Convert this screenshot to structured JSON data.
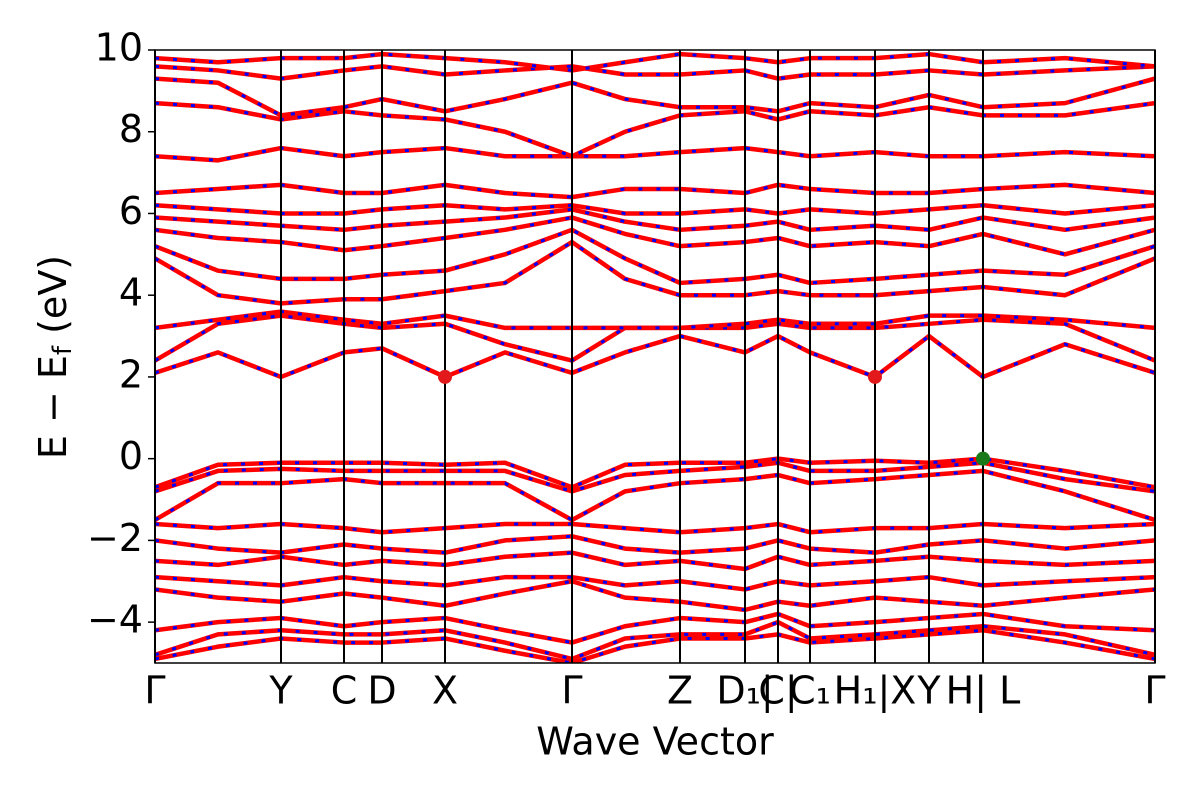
{
  "chart_data": {
    "type": "line",
    "xlabel": "Wave Vector",
    "ylabel": {
      "main": "E − E",
      "sub": "f",
      "unit": " (eV)"
    },
    "xlim": [
      0,
      1
    ],
    "ylim": [
      -5,
      10
    ],
    "yticks": [
      {
        "value": -4,
        "label": "−4"
      },
      {
        "value": -2,
        "label": "−2"
      },
      0,
      2,
      4,
      6,
      8,
      10
    ],
    "xticks": [
      {
        "value": 0,
        "label": "Γ"
      },
      {
        "value": 0.126,
        "label": "Y"
      },
      {
        "value": 0.189,
        "label": "C"
      },
      {
        "value": 0.227,
        "label": "D"
      },
      {
        "value": 0.29,
        "label": "X"
      },
      {
        "value": 0.417,
        "label": "Γ"
      },
      {
        "value": 0.525,
        "label": "Z"
      },
      {
        "value": 0.59,
        "label": "D₁|"
      },
      {
        "value": 0.623,
        "label": "C|"
      },
      {
        "value": 0.655,
        "label": "C₁"
      },
      {
        "value": 0.72,
        "label": "H₁|X"
      },
      {
        "value": 0.774,
        "label": "Y"
      },
      {
        "value": 0.828,
        "label": "H| L"
      },
      {
        "value": 1,
        "label": "Γ"
      }
    ],
    "line_color": "#ff0000",
    "dash_color": "#0000ff",
    "x": [
      0,
      0.063,
      0.126,
      0.189,
      0.227,
      0.29,
      0.35,
      0.417,
      0.47,
      0.525,
      0.59,
      0.623,
      0.655,
      0.72,
      0.774,
      0.828,
      0.91,
      1
    ],
    "series": [
      {
        "values": [
          -0.7,
          -0.15,
          -0.1,
          -0.1,
          -0.1,
          -0.15,
          -0.1,
          -0.7,
          -0.15,
          -0.1,
          -0.1,
          0.0,
          -0.1,
          -0.05,
          -0.1,
          0.0,
          -0.3,
          -0.7
        ]
      },
      {
        "values": [
          -0.8,
          -0.3,
          -0.25,
          -0.3,
          -0.3,
          -0.3,
          -0.3,
          -0.8,
          -0.4,
          -0.3,
          -0.2,
          -0.1,
          -0.3,
          -0.3,
          -0.2,
          -0.1,
          -0.5,
          -0.8
        ]
      },
      {
        "values": [
          -1.5,
          -0.6,
          -0.6,
          -0.5,
          -0.6,
          -0.6,
          -0.6,
          -1.5,
          -0.8,
          -0.6,
          -0.5,
          -0.4,
          -0.6,
          -0.5,
          -0.4,
          -0.3,
          -0.8,
          -1.5
        ]
      },
      {
        "values": [
          -1.6,
          -1.7,
          -1.6,
          -1.7,
          -1.8,
          -1.7,
          -1.6,
          -1.6,
          -1.7,
          -1.8,
          -1.7,
          -1.6,
          -1.8,
          -1.7,
          -1.7,
          -1.6,
          -1.7,
          -1.6
        ]
      },
      {
        "values": [
          -2.0,
          -2.2,
          -2.3,
          -2.1,
          -2.2,
          -2.3,
          -2.0,
          -1.9,
          -2.2,
          -2.3,
          -2.2,
          -2.0,
          -2.2,
          -2.3,
          -2.1,
          -2.0,
          -2.2,
          -2.0
        ]
      },
      {
        "values": [
          -2.5,
          -2.6,
          -2.4,
          -2.6,
          -2.5,
          -2.6,
          -2.4,
          -2.3,
          -2.6,
          -2.5,
          -2.7,
          -2.4,
          -2.6,
          -2.5,
          -2.4,
          -2.5,
          -2.6,
          -2.5
        ]
      },
      {
        "values": [
          -2.9,
          -3.0,
          -3.1,
          -2.9,
          -3.0,
          -3.1,
          -2.9,
          -2.9,
          -3.1,
          -3.0,
          -3.2,
          -3.0,
          -3.1,
          -3.0,
          -2.9,
          -3.1,
          -3.0,
          -2.9
        ]
      },
      {
        "values": [
          -3.2,
          -3.4,
          -3.5,
          -3.3,
          -3.4,
          -3.6,
          -3.3,
          -3.0,
          -3.4,
          -3.5,
          -3.7,
          -3.5,
          -3.6,
          -3.4,
          -3.5,
          -3.6,
          -3.4,
          -3.2
        ]
      },
      {
        "values": [
          -4.2,
          -4.0,
          -3.9,
          -4.1,
          -4.0,
          -3.9,
          -4.2,
          -4.5,
          -4.1,
          -3.9,
          -4.0,
          -3.8,
          -4.1,
          -4.0,
          -3.9,
          -3.8,
          -4.1,
          -4.2
        ]
      },
      {
        "values": [
          -4.8,
          -4.3,
          -4.2,
          -4.3,
          -4.3,
          -4.2,
          -4.5,
          -4.9,
          -4.4,
          -4.3,
          -4.3,
          -4.0,
          -4.4,
          -4.3,
          -4.2,
          -4.1,
          -4.3,
          -4.8
        ]
      },
      {
        "values": [
          -4.9,
          -4.6,
          -4.4,
          -4.5,
          -4.5,
          -4.4,
          -4.7,
          -5.0,
          -4.6,
          -4.4,
          -4.4,
          -4.3,
          -4.5,
          -4.4,
          -4.3,
          -4.2,
          -4.5,
          -4.9
        ]
      },
      {
        "values": [
          2.1,
          2.6,
          2.0,
          2.6,
          2.7,
          2.0,
          2.6,
          2.1,
          2.6,
          3.0,
          2.6,
          3.0,
          2.6,
          2.0,
          3.0,
          2.0,
          2.8,
          2.1
        ]
      },
      {
        "values": [
          2.4,
          3.3,
          3.5,
          3.3,
          3.2,
          3.3,
          2.8,
          2.4,
          3.2,
          3.2,
          3.2,
          3.3,
          3.2,
          3.2,
          3.3,
          3.4,
          3.3,
          2.4
        ]
      },
      {
        "values": [
          3.2,
          3.4,
          3.6,
          3.4,
          3.3,
          3.5,
          3.2,
          3.2,
          3.2,
          3.2,
          3.3,
          3.4,
          3.3,
          3.3,
          3.5,
          3.5,
          3.4,
          3.2
        ]
      },
      {
        "values": [
          4.9,
          4.0,
          3.8,
          3.9,
          3.9,
          4.1,
          4.3,
          5.3,
          4.4,
          4.0,
          4.0,
          4.1,
          4.0,
          4.0,
          4.1,
          4.2,
          4.0,
          4.9
        ]
      },
      {
        "values": [
          5.2,
          4.6,
          4.4,
          4.4,
          4.5,
          4.6,
          5.0,
          5.6,
          4.9,
          4.3,
          4.4,
          4.5,
          4.3,
          4.4,
          4.5,
          4.6,
          4.5,
          5.2
        ]
      },
      {
        "values": [
          5.6,
          5.4,
          5.3,
          5.1,
          5.2,
          5.4,
          5.6,
          5.9,
          5.5,
          5.2,
          5.3,
          5.4,
          5.2,
          5.3,
          5.2,
          5.5,
          5.0,
          5.6
        ]
      },
      {
        "values": [
          5.9,
          5.8,
          5.7,
          5.6,
          5.7,
          5.8,
          5.9,
          6.1,
          5.8,
          5.6,
          5.7,
          5.8,
          5.6,
          5.7,
          5.6,
          5.9,
          5.6,
          5.9
        ]
      },
      {
        "values": [
          6.2,
          6.1,
          6.0,
          6.0,
          6.1,
          6.2,
          6.1,
          6.2,
          6.0,
          6.0,
          6.1,
          6.0,
          6.1,
          6.0,
          6.1,
          6.2,
          6.0,
          6.2
        ]
      },
      {
        "values": [
          6.5,
          6.6,
          6.7,
          6.5,
          6.5,
          6.7,
          6.5,
          6.4,
          6.6,
          6.6,
          6.5,
          6.7,
          6.6,
          6.5,
          6.5,
          6.6,
          6.7,
          6.5
        ]
      },
      {
        "values": [
          7.4,
          7.3,
          7.6,
          7.4,
          7.5,
          7.6,
          7.4,
          7.4,
          7.4,
          7.5,
          7.6,
          7.5,
          7.4,
          7.5,
          7.4,
          7.4,
          7.5,
          7.4
        ]
      },
      {
        "values": [
          8.7,
          8.6,
          8.3,
          8.5,
          8.4,
          8.3,
          8.0,
          7.4,
          8.0,
          8.4,
          8.5,
          8.3,
          8.5,
          8.4,
          8.6,
          8.4,
          8.4,
          8.7
        ]
      },
      {
        "values": [
          9.3,
          9.2,
          8.4,
          8.6,
          8.8,
          8.5,
          8.8,
          9.2,
          8.8,
          8.6,
          8.6,
          8.5,
          8.7,
          8.6,
          8.9,
          8.6,
          8.7,
          9.3
        ]
      },
      {
        "values": [
          9.6,
          9.5,
          9.3,
          9.5,
          9.6,
          9.4,
          9.5,
          9.6,
          9.4,
          9.4,
          9.5,
          9.3,
          9.4,
          9.4,
          9.5,
          9.4,
          9.5,
          9.6
        ]
      },
      {
        "values": [
          9.8,
          9.7,
          9.8,
          9.8,
          9.9,
          9.8,
          9.7,
          9.5,
          9.7,
          9.9,
          9.8,
          9.7,
          9.8,
          9.8,
          9.9,
          9.7,
          9.8,
          9.6
        ]
      }
    ],
    "points": [
      {
        "x": 0.29,
        "y": 2.0,
        "color": "#e31a1c"
      },
      {
        "x": 0.72,
        "y": 2.0,
        "color": "#e31a1c"
      },
      {
        "x": 0.828,
        "y": 0.0,
        "color": "#1a7a1a"
      }
    ]
  }
}
